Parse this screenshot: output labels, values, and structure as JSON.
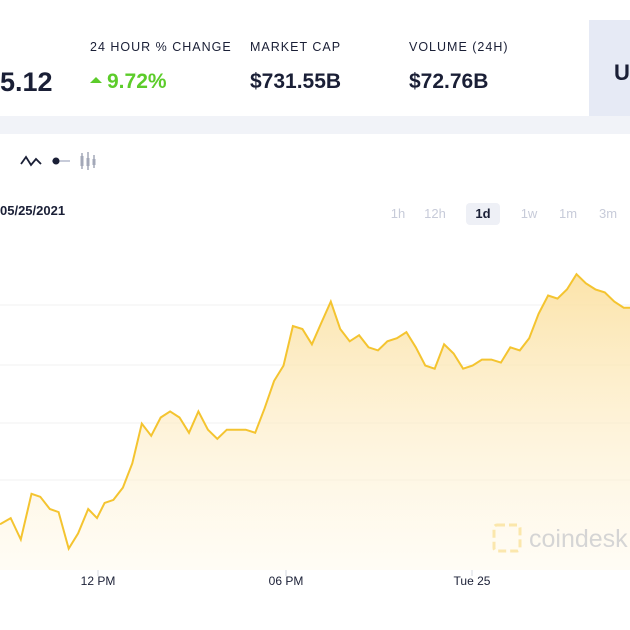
{
  "stats": {
    "price": {
      "value": "5.12"
    },
    "change_24h": {
      "label": "24 HOUR % CHANGE",
      "value": "9.72%",
      "direction": "up"
    },
    "market_cap": {
      "label": "MARKET CAP",
      "value": "$731.55B"
    },
    "volume": {
      "label": "VOLUME (24H)",
      "value": "$72.76B"
    },
    "cta": {
      "label": "U"
    }
  },
  "chart_controls": {
    "date": "05/25/2021",
    "toggles": [
      {
        "name": "line-chart-icon"
      },
      {
        "name": "point-toggle-icon"
      },
      {
        "name": "candlestick-icon"
      }
    ],
    "ranges": [
      {
        "label": "1h",
        "active": false
      },
      {
        "label": "12h",
        "active": false
      },
      {
        "label": "1d",
        "active": true
      },
      {
        "label": "1w",
        "active": false
      },
      {
        "label": "1m",
        "active": false
      },
      {
        "label": "3m",
        "active": false
      }
    ]
  },
  "watermark": "coindesk",
  "colors": {
    "line": "#f4c430",
    "area": "#fbe3a4",
    "up": "#5ccc2a",
    "grid": "#f0f0f0",
    "text": "#1a1f36"
  },
  "chart_data": {
    "type": "area",
    "title": "",
    "xlabel": "",
    "ylabel": "",
    "grid": true,
    "legend": "none",
    "x_ticks": [
      "12 PM",
      "06 PM",
      "Tue 25"
    ],
    "y_ticks_visible": false,
    "x_range": [
      0,
      100
    ],
    "y_range": [
      0,
      100
    ],
    "x": [
      0,
      1.7,
      3.3,
      5,
      6.4,
      7.9,
      9.3,
      10.9,
      12.4,
      14,
      15.4,
      16.6,
      18,
      19.5,
      21,
      22.5,
      24,
      25.5,
      27,
      28.5,
      30,
      31.5,
      33,
      34.5,
      36,
      37.5,
      39,
      40.5,
      42,
      43.5,
      45,
      46.5,
      48,
      49.5,
      51,
      52.5,
      54,
      55.5,
      57,
      58.5,
      60,
      61.5,
      63,
      64.5,
      66,
      67.5,
      69,
      70.5,
      72,
      73.5,
      75,
      76.5,
      78,
      79.5,
      81,
      82.5,
      84,
      85.5,
      87,
      88.5,
      90,
      91.5,
      93,
      94.5,
      96,
      97.5,
      99,
      100
    ],
    "values": [
      15,
      17,
      10,
      25,
      24,
      20,
      19,
      7,
      12,
      20,
      17,
      22,
      23,
      27,
      35,
      48,
      44,
      50,
      52,
      50,
      45,
      52,
      46,
      43,
      46,
      46,
      46,
      45,
      53,
      62,
      67,
      80,
      79,
      74,
      81,
      88,
      79,
      75,
      77,
      73,
      72,
      75,
      76,
      78,
      73,
      67,
      66,
      74,
      71,
      66,
      67,
      69,
      69,
      68,
      73,
      72,
      76,
      84,
      90,
      89,
      92,
      97,
      94,
      92,
      91,
      88,
      86,
      86
    ]
  }
}
